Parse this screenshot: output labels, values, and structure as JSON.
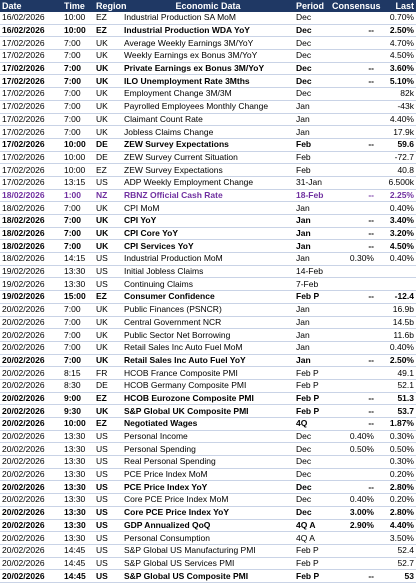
{
  "headers": {
    "date": "Date",
    "time": "Time",
    "region": "Region",
    "event": "Economic Data",
    "period": "Period",
    "consensus": "Consensus",
    "last": "Last"
  },
  "rows": [
    {
      "date": "16/02/2026",
      "time": "10:00",
      "region": "EZ",
      "event": "Industrial Production SA MoM",
      "period": "Dec",
      "consensus": "",
      "last": "0.70%",
      "style": ""
    },
    {
      "date": "16/02/2026",
      "time": "10:00",
      "region": "EZ",
      "event": "Industrial Production WDA YoY",
      "period": "Dec",
      "consensus": "--",
      "last": "2.50%",
      "style": "bold"
    },
    {
      "date": "17/02/2026",
      "time": "7:00",
      "region": "UK",
      "event": "Average Weekly Earnings 3M/YoY",
      "period": "Dec",
      "consensus": "",
      "last": "4.70%",
      "style": ""
    },
    {
      "date": "17/02/2026",
      "time": "7:00",
      "region": "UK",
      "event": "Weekly Earnings ex Bonus 3M/YoY",
      "period": "Dec",
      "consensus": "",
      "last": "4.50%",
      "style": ""
    },
    {
      "date": "17/02/2026",
      "time": "7:00",
      "region": "UK",
      "event": "Private Earnings ex Bonus 3M/YoY",
      "period": "Dec",
      "consensus": "--",
      "last": "3.60%",
      "style": "bold"
    },
    {
      "date": "17/02/2026",
      "time": "7:00",
      "region": "UK",
      "event": "ILO Unemployment Rate 3Mths",
      "period": "Dec",
      "consensus": "--",
      "last": "5.10%",
      "style": "bold"
    },
    {
      "date": "17/02/2026",
      "time": "7:00",
      "region": "UK",
      "event": "Employment Change 3M/3M",
      "period": "Dec",
      "consensus": "",
      "last": "82k",
      "style": ""
    },
    {
      "date": "17/02/2026",
      "time": "7:00",
      "region": "UK",
      "event": "Payrolled Employees Monthly Change",
      "period": "Jan",
      "consensus": "",
      "last": "-43k",
      "style": ""
    },
    {
      "date": "17/02/2026",
      "time": "7:00",
      "region": "UK",
      "event": "Claimant Count Rate",
      "period": "Jan",
      "consensus": "",
      "last": "4.40%",
      "style": ""
    },
    {
      "date": "17/02/2026",
      "time": "7:00",
      "region": "UK",
      "event": "Jobless Claims Change",
      "period": "Jan",
      "consensus": "",
      "last": "17.9k",
      "style": ""
    },
    {
      "date": "17/02/2026",
      "time": "10:00",
      "region": "DE",
      "event": "ZEW Survey Expectations",
      "period": "Feb",
      "consensus": "--",
      "last": "59.6",
      "style": "bold"
    },
    {
      "date": "17/02/2026",
      "time": "10:00",
      "region": "DE",
      "event": "ZEW Survey Current Situation",
      "period": "Feb",
      "consensus": "",
      "last": "-72.7",
      "style": ""
    },
    {
      "date": "17/02/2026",
      "time": "10:00",
      "region": "EZ",
      "event": "ZEW Survey Expectations",
      "period": "Feb",
      "consensus": "",
      "last": "40.8",
      "style": ""
    },
    {
      "date": "17/02/2026",
      "time": "13:15",
      "region": "US",
      "event": "ADP Weekly Employment Change",
      "period": "31-Jan",
      "consensus": "",
      "last": "6.500k",
      "style": ""
    },
    {
      "date": "18/02/2026",
      "time": "1:00",
      "region": "NZ",
      "event": "RBNZ Official Cash Rate",
      "period": "18-Feb",
      "consensus": "--",
      "last": "2.25%",
      "style": "hl"
    },
    {
      "date": "18/02/2026",
      "time": "7:00",
      "region": "UK",
      "event": "CPI MoM",
      "period": "Jan",
      "consensus": "",
      "last": "0.40%",
      "style": ""
    },
    {
      "date": "18/02/2026",
      "time": "7:00",
      "region": "UK",
      "event": "CPI YoY",
      "period": "Jan",
      "consensus": "--",
      "last": "3.40%",
      "style": "bold"
    },
    {
      "date": "18/02/2026",
      "time": "7:00",
      "region": "UK",
      "event": "CPI Core YoY",
      "period": "Jan",
      "consensus": "--",
      "last": "3.20%",
      "style": "bold"
    },
    {
      "date": "18/02/2026",
      "time": "7:00",
      "region": "UK",
      "event": "CPI Services YoY",
      "period": "Jan",
      "consensus": "--",
      "last": "4.50%",
      "style": "bold"
    },
    {
      "date": "18/02/2026",
      "time": "14:15",
      "region": "US",
      "event": "Industrial Production MoM",
      "period": "Jan",
      "consensus": "0.30%",
      "last": "0.40%",
      "style": ""
    },
    {
      "date": "19/02/2026",
      "time": "13:30",
      "region": "US",
      "event": "Initial Jobless Claims",
      "period": "14-Feb",
      "consensus": "",
      "last": "",
      "style": ""
    },
    {
      "date": "19/02/2026",
      "time": "13:30",
      "region": "US",
      "event": "Continuing Claims",
      "period": "7-Feb",
      "consensus": "",
      "last": "",
      "style": ""
    },
    {
      "date": "19/02/2026",
      "time": "15:00",
      "region": "EZ",
      "event": "Consumer Confidence",
      "period": "Feb P",
      "consensus": "--",
      "last": "-12.4",
      "style": "bold"
    },
    {
      "date": "20/02/2026",
      "time": "7:00",
      "region": "UK",
      "event": "Public Finances (PSNCR)",
      "period": "Jan",
      "consensus": "",
      "last": "16.9b",
      "style": ""
    },
    {
      "date": "20/02/2026",
      "time": "7:00",
      "region": "UK",
      "event": "Central Government NCR",
      "period": "Jan",
      "consensus": "",
      "last": "14.5b",
      "style": ""
    },
    {
      "date": "20/02/2026",
      "time": "7:00",
      "region": "UK",
      "event": "Public Sector Net Borrowing",
      "period": "Jan",
      "consensus": "",
      "last": "11.6b",
      "style": ""
    },
    {
      "date": "20/02/2026",
      "time": "7:00",
      "region": "UK",
      "event": "Retail Sales Inc Auto Fuel MoM",
      "period": "Jan",
      "consensus": "",
      "last": "0.40%",
      "style": ""
    },
    {
      "date": "20/02/2026",
      "time": "7:00",
      "region": "UK",
      "event": "Retail Sales Inc Auto Fuel YoY",
      "period": "Jan",
      "consensus": "--",
      "last": "2.50%",
      "style": "bold"
    },
    {
      "date": "20/02/2026",
      "time": "8:15",
      "region": "FR",
      "event": "HCOB France Composite PMI",
      "period": "Feb P",
      "consensus": "",
      "last": "49.1",
      "style": ""
    },
    {
      "date": "20/02/2026",
      "time": "8:30",
      "region": "DE",
      "event": "HCOB Germany Composite PMI",
      "period": "Feb P",
      "consensus": "",
      "last": "52.1",
      "style": ""
    },
    {
      "date": "20/02/2026",
      "time": "9:00",
      "region": "EZ",
      "event": "HCOB Eurozone Composite PMI",
      "period": "Feb P",
      "consensus": "--",
      "last": "51.3",
      "style": "bold"
    },
    {
      "date": "20/02/2026",
      "time": "9:30",
      "region": "UK",
      "event": "S&P Global UK Composite PMI",
      "period": "Feb P",
      "consensus": "--",
      "last": "53.7",
      "style": "bold"
    },
    {
      "date": "20/02/2026",
      "time": "10:00",
      "region": "EZ",
      "event": "Negotiated Wages",
      "period": "4Q",
      "consensus": "--",
      "last": "1.87%",
      "style": "bold"
    },
    {
      "date": "20/02/2026",
      "time": "13:30",
      "region": "US",
      "event": "Personal Income",
      "period": "Dec",
      "consensus": "0.40%",
      "last": "0.30%",
      "style": ""
    },
    {
      "date": "20/02/2026",
      "time": "13:30",
      "region": "US",
      "event": "Personal Spending",
      "period": "Dec",
      "consensus": "0.50%",
      "last": "0.50%",
      "style": ""
    },
    {
      "date": "20/02/2026",
      "time": "13:30",
      "region": "US",
      "event": "Real Personal Spending",
      "period": "Dec",
      "consensus": "",
      "last": "0.30%",
      "style": ""
    },
    {
      "date": "20/02/2026",
      "time": "13:30",
      "region": "US",
      "event": "PCE Price Index MoM",
      "period": "Dec",
      "consensus": "",
      "last": "0.20%",
      "style": ""
    },
    {
      "date": "20/02/2026",
      "time": "13:30",
      "region": "US",
      "event": "PCE Price Index YoY",
      "period": "Dec",
      "consensus": "--",
      "last": "2.80%",
      "style": "bold"
    },
    {
      "date": "20/02/2026",
      "time": "13:30",
      "region": "US",
      "event": "Core PCE Price Index MoM",
      "period": "Dec",
      "consensus": "0.40%",
      "last": "0.20%",
      "style": ""
    },
    {
      "date": "20/02/2026",
      "time": "13:30",
      "region": "US",
      "event": "Core PCE Price Index YoY",
      "period": "Dec",
      "consensus": "3.00%",
      "last": "2.80%",
      "style": "bold"
    },
    {
      "date": "20/02/2026",
      "time": "13:30",
      "region": "US",
      "event": "GDP Annualized QoQ",
      "period": "4Q A",
      "consensus": "2.90%",
      "last": "4.40%",
      "style": "bold"
    },
    {
      "date": "20/02/2026",
      "time": "13:30",
      "region": "US",
      "event": "Personal Consumption",
      "period": "4Q A",
      "consensus": "",
      "last": "3.50%",
      "style": ""
    },
    {
      "date": "20/02/2026",
      "time": "14:45",
      "region": "US",
      "event": "S&P Global US Manufacturing PMI",
      "period": "Feb P",
      "consensus": "",
      "last": "52.4",
      "style": ""
    },
    {
      "date": "20/02/2026",
      "time": "14:45",
      "region": "US",
      "event": "S&P Global US Services PMI",
      "period": "Feb P",
      "consensus": "",
      "last": "52.7",
      "style": ""
    },
    {
      "date": "20/02/2026",
      "time": "14:45",
      "region": "US",
      "event": "S&P Global US Composite PMI",
      "period": "Feb P",
      "consensus": "--",
      "last": "53",
      "style": "bold"
    }
  ]
}
